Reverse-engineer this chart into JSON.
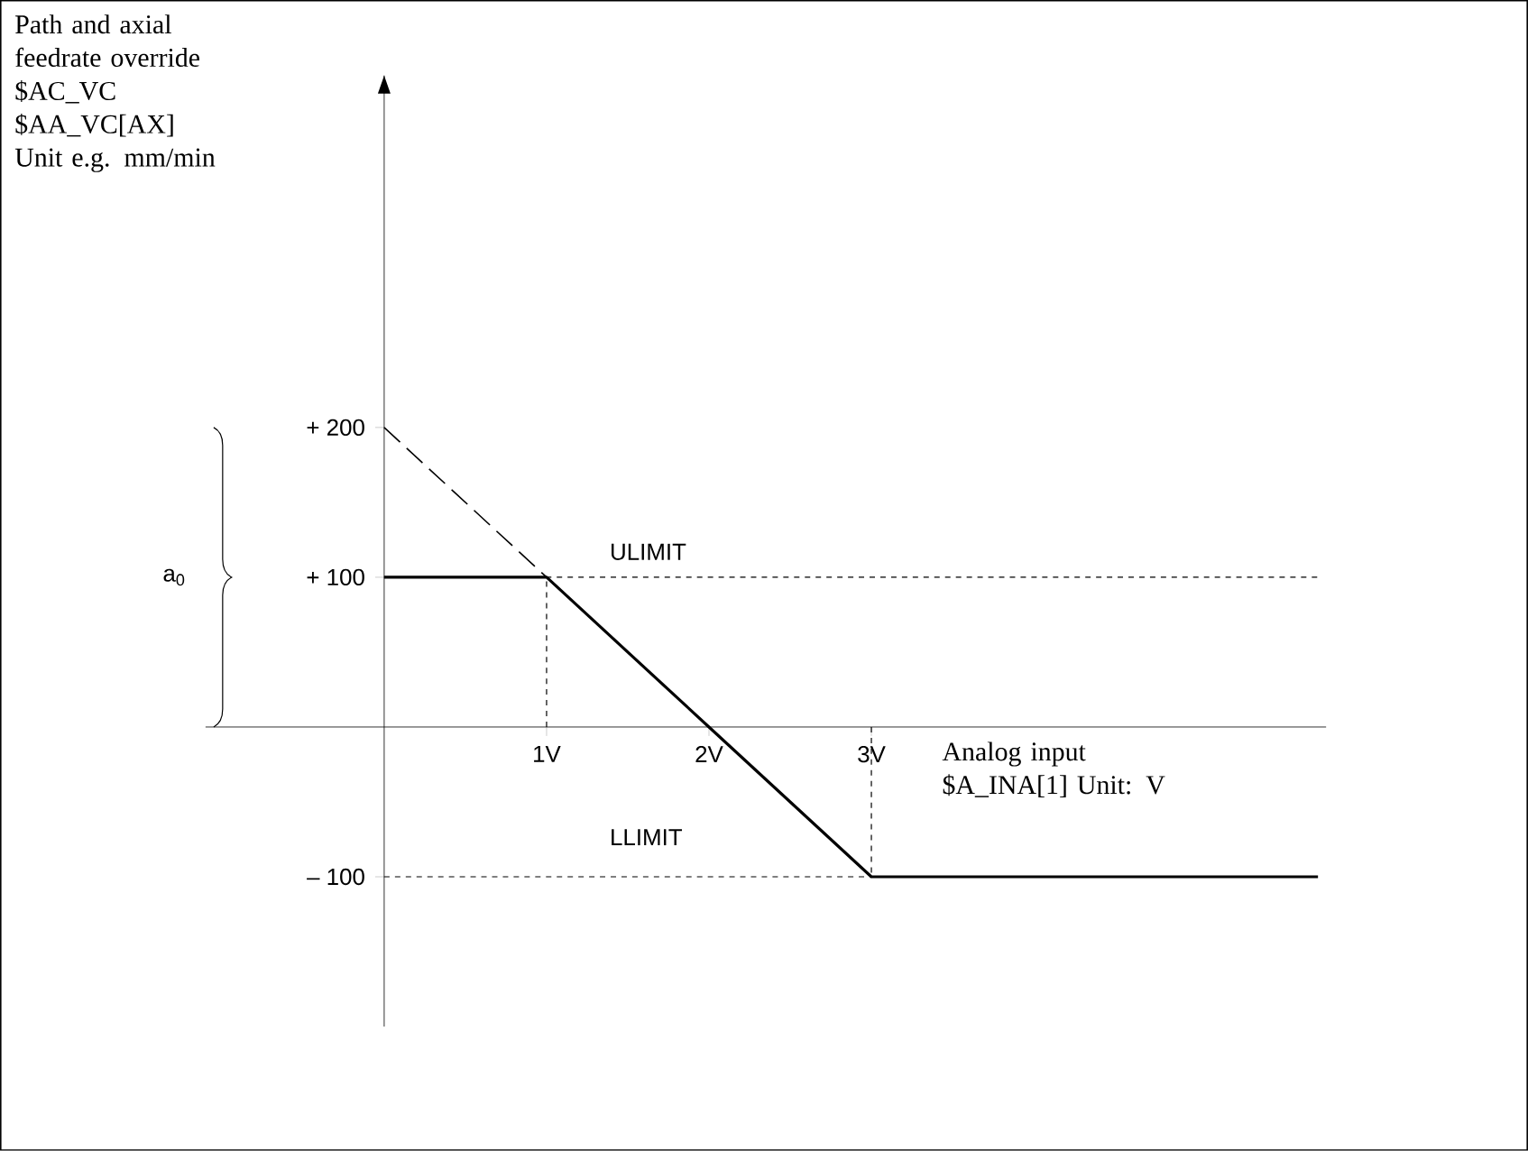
{
  "chart_data": {
    "type": "line",
    "xlabel": "Analog input $A_INA[1] Unit: V",
    "ylabel": "Path and axial feedrate override $AC_VC $AA_VC[AX] Unit e.g. mm/min",
    "series": [
      {
        "x": [
          0,
          1,
          2,
          3,
          5.75
        ],
        "values": [
          100,
          100,
          0,
          -100,
          -100
        ],
        "color": "#000000",
        "line_style": "solid"
      },
      {
        "x": [
          0,
          1
        ],
        "values": [
          200,
          100
        ],
        "color": "#000000",
        "line_style": "dashed"
      }
    ],
    "xlim": [
      -1.1,
      5.8
    ],
    "ylim": [
      -200,
      435
    ],
    "xticks": [
      {
        "value": 1,
        "label": "1V"
      },
      {
        "value": 2,
        "label": "2V"
      },
      {
        "value": 3,
        "label": "3V"
      }
    ],
    "yticks": [
      {
        "value": 200,
        "label": "+ 200"
      },
      {
        "value": 100,
        "label": "+ 100"
      },
      {
        "value": -100,
        "label": "– 100"
      }
    ],
    "ref_lines": [
      {
        "axis": "y",
        "value": 100,
        "label": "ULIMIT",
        "line_style": "dashed"
      },
      {
        "axis": "y",
        "value": -100,
        "label": "LLIMIT",
        "line_style": "dashed"
      },
      {
        "axis": "x",
        "value": 1,
        "line_style": "dashed"
      },
      {
        "axis": "x",
        "value": 3,
        "line_style": "dashed"
      }
    ],
    "annotations": [
      "a$_{0}$"
    ],
    "grid": false
  }
}
